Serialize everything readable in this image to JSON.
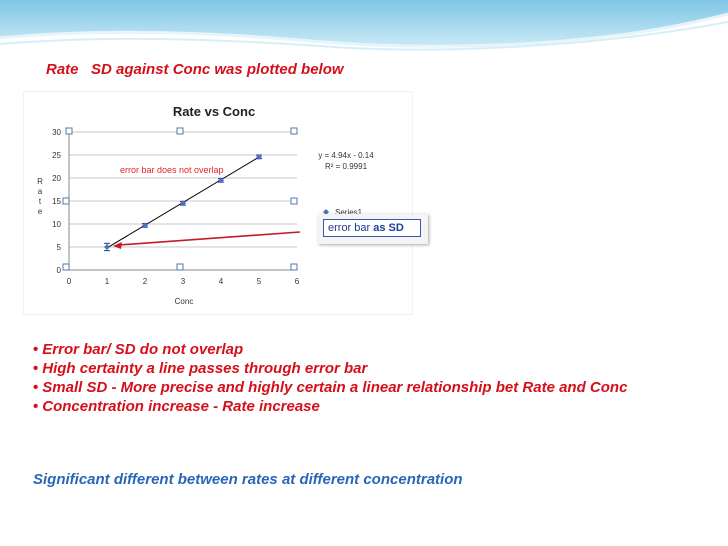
{
  "heading": "Rate   SD against Conc was plotted below",
  "chart_data": {
    "type": "scatter",
    "title": "Rate vs Conc",
    "xlabel": "Conc",
    "ylabel": "Rate",
    "xlim": [
      0,
      6
    ],
    "ylim": [
      0,
      30
    ],
    "x_ticks": [
      "0",
      "1",
      "2",
      "3",
      "4",
      "5",
      "6"
    ],
    "y_ticks": [
      "0",
      "5",
      "10",
      "15",
      "20",
      "25",
      "30"
    ],
    "grid": "horizontal",
    "legend_placement": "right",
    "series": [
      {
        "name": "Series1",
        "x": [
          1,
          2,
          3,
          4,
          5
        ],
        "y": [
          5,
          9.7,
          14.5,
          19.5,
          24.6
        ],
        "error": [
          0.8,
          0.4,
          0.4,
          0.4,
          0.4
        ],
        "color": "#4f73b8"
      }
    ],
    "trendline": {
      "slope": 4.94,
      "intercept": -0.14,
      "x_range": [
        1,
        5
      ],
      "color": "#000000"
    },
    "equation_text": "y = 4.94x - 0.14",
    "r2_text": "R² = 0.9991",
    "annotation": "error bar does not overlap",
    "annotation_color": "#e8232a",
    "callout_text": "error bar ",
    "callout_bold": "as SD",
    "arrow_color": "#c51b25"
  },
  "bullets": [
    "Error bar/ SD do not overlap",
    "High certainty a line passes through error bar",
    "Small SD - More precise and highly certain a linear relationship bet Rate and Conc",
    "Concentration increase - Rate increase"
  ],
  "bullet_glyph": "•",
  "conclusion": "Significant different between rates at different concentration"
}
